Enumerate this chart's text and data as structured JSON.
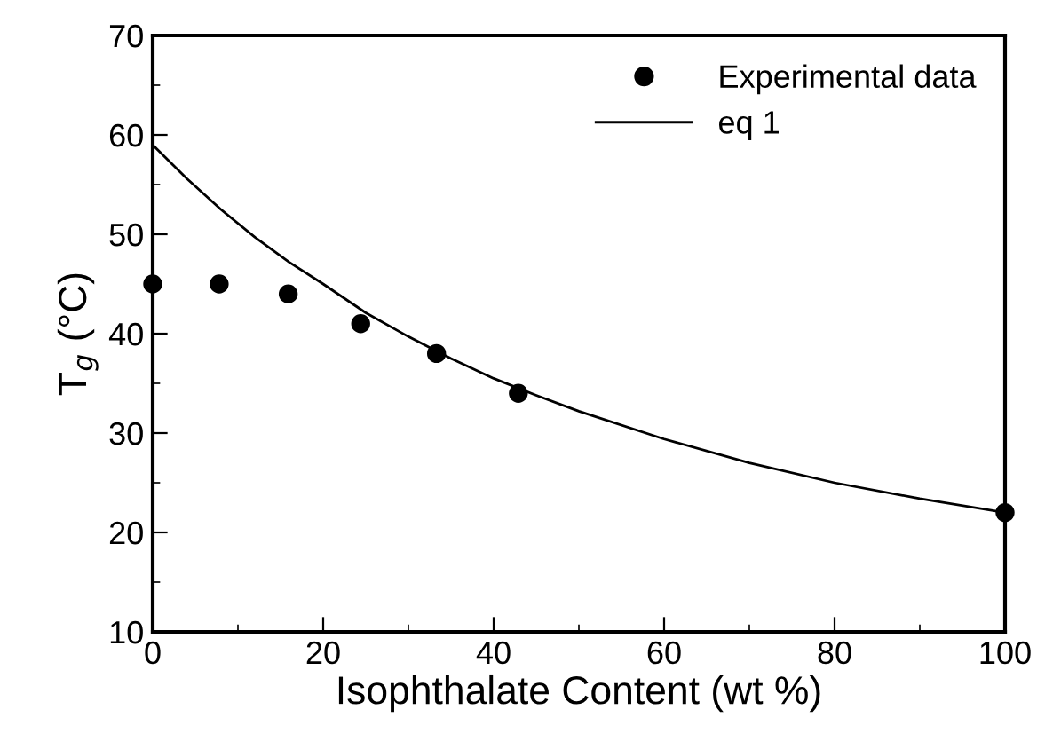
{
  "chart_data": {
    "type": "scatter",
    "xlabel": "Isophthalate Content (wt %)",
    "ylabel": "T$_{g}$ (°C)",
    "xlim": [
      0,
      100
    ],
    "ylim": [
      10,
      70
    ],
    "xticks": [
      0,
      {
        "value": 10,
        "label": null
      },
      20,
      {
        "value": 30,
        "label": null
      },
      40,
      {
        "value": 50,
        "label": null
      },
      60,
      {
        "value": 70,
        "label": null
      },
      80,
      {
        "value": 90,
        "label": null
      },
      100
    ],
    "yticks": [
      10,
      {
        "value": 15,
        "label": null
      },
      20,
      {
        "value": 25,
        "label": null
      },
      30,
      {
        "value": 35,
        "label": null
      },
      40,
      {
        "value": 45,
        "label": null
      },
      50,
      {
        "value": 55,
        "label": null
      },
      60,
      {
        "value": 65,
        "label": null
      },
      70
    ],
    "grid": false,
    "legend": "top right",
    "series": [
      {
        "name": "Experimental data",
        "color": "#000000",
        "marker": "circle",
        "x": [
          0,
          7.8,
          15.9,
          24.4,
          33.3,
          42.9,
          100
        ],
        "values": [
          45,
          45,
          44,
          41,
          38,
          34,
          22
        ]
      },
      {
        "name": "eq 1",
        "type": "line",
        "color": "#000000",
        "marker": "none",
        "line_style": "solid",
        "x": [
          0,
          4,
          8,
          12,
          16,
          20,
          25,
          30,
          35,
          40,
          45,
          50,
          60,
          70,
          80,
          90,
          100
        ],
        "values": [
          59,
          55.6,
          52.5,
          49.7,
          47.2,
          45,
          42.1,
          39.7,
          37.5,
          35.5,
          33.8,
          32.2,
          29.4,
          27,
          25,
          23.4,
          22
        ]
      }
    ]
  }
}
